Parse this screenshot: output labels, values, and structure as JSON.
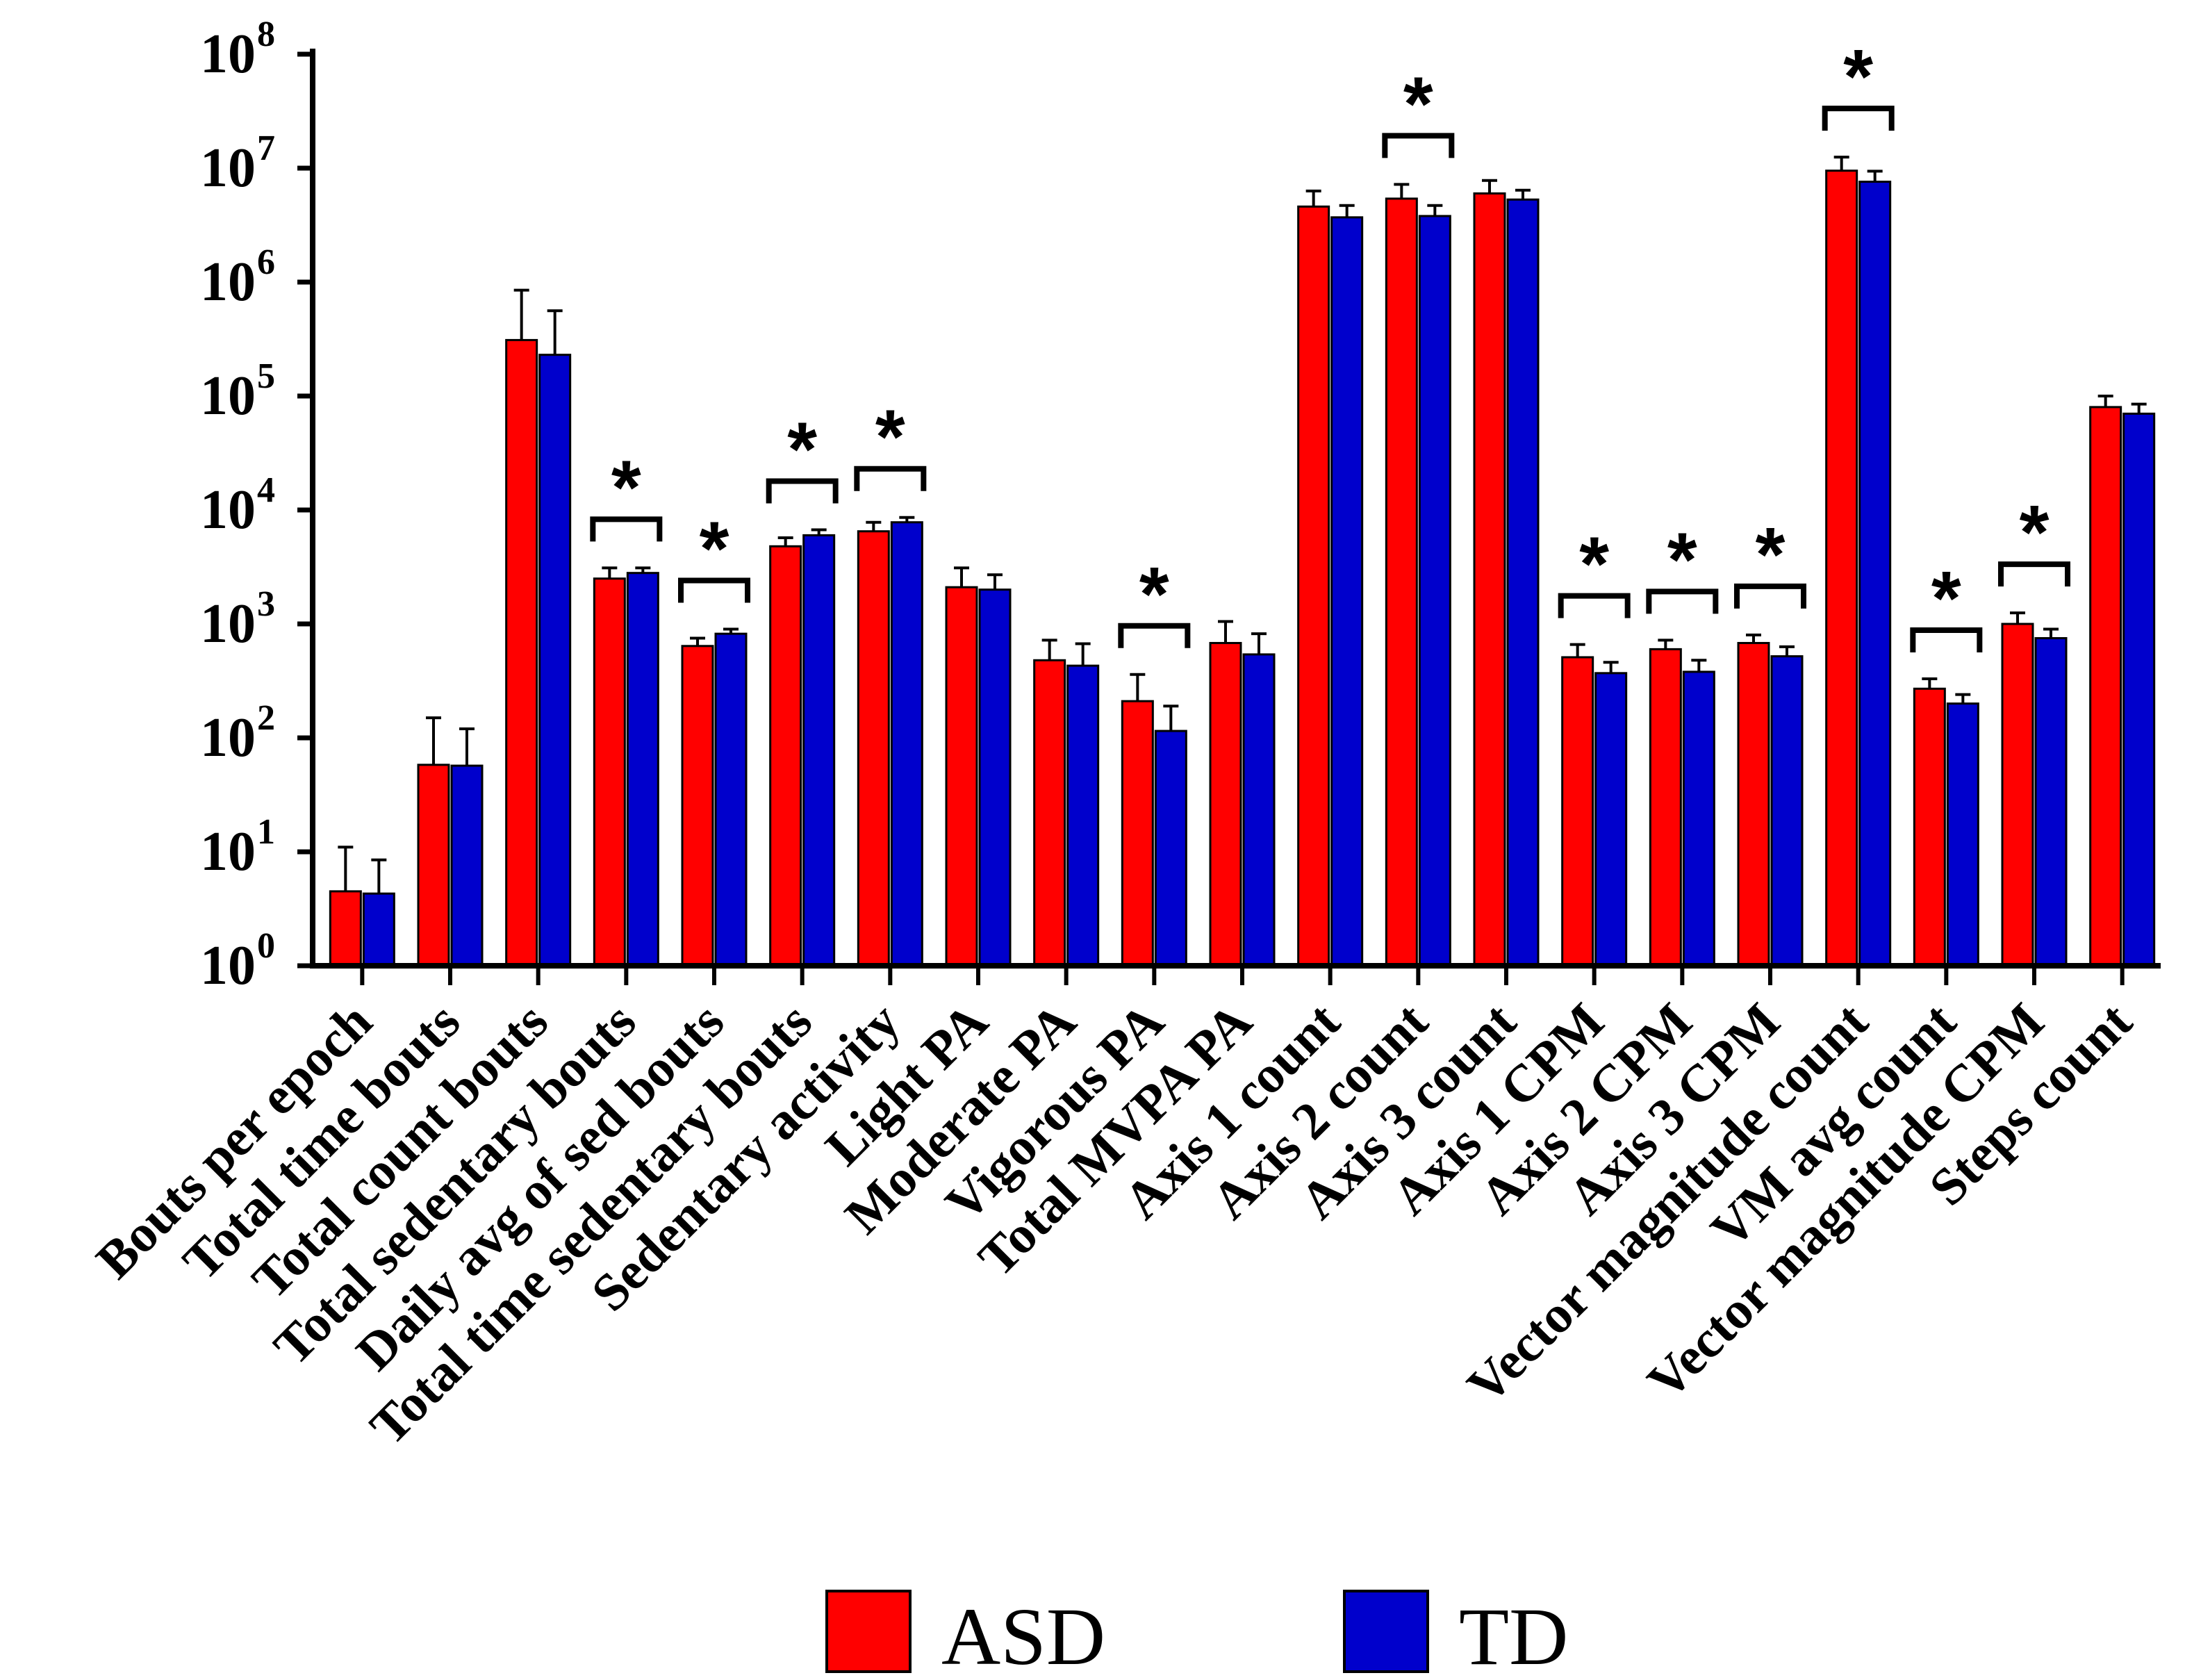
{
  "chart_data": {
    "type": "bar",
    "title": "",
    "xlabel": "",
    "ylabel": "",
    "yscale": "log",
    "ylim": [
      1,
      100000000
    ],
    "yticks": [
      {
        "base": "10",
        "exp": "0"
      },
      {
        "base": "10",
        "exp": "1"
      },
      {
        "base": "10",
        "exp": "2"
      },
      {
        "base": "10",
        "exp": "3"
      },
      {
        "base": "10",
        "exp": "4"
      },
      {
        "base": "10",
        "exp": "5"
      },
      {
        "base": "10",
        "exp": "6"
      },
      {
        "base": "10",
        "exp": "7"
      },
      {
        "base": "10",
        "exp": "8"
      }
    ],
    "categories": [
      "Bouts per epoch",
      "Total time bouts",
      "Total count bouts",
      "Total sedentary bouts",
      "Daily avg of sed bouts",
      "Total time sedentary bouts",
      "Sedentary activity",
      "Light PA",
      "Moderate PA",
      "Vigorous PA",
      "Total MVPA PA",
      "Axis 1 count",
      "Axis 2 count",
      "Axis 3 count",
      "Axis 1 CPM",
      "Axis 2 CPM",
      "Axis 3 CPM",
      "Vector magnitude count",
      "VM avg count",
      "Vector magnitude CPM",
      "Steps count"
    ],
    "series": [
      {
        "name": "ASD",
        "color": "#ff0000",
        "values": [
          4.5,
          58,
          310000,
          2500,
          640,
          4800,
          6500,
          2100,
          480,
          210,
          680,
          4600000,
          5400000,
          6000000,
          510,
          600,
          680,
          9500000,
          270,
          1000,
          80000
        ],
        "error_upper": [
          11,
          150,
          850000,
          3100,
          750,
          5700,
          7800,
          3100,
          720,
          360,
          1050,
          6300000,
          7200000,
          7800000,
          660,
          720,
          800,
          12500000,
          330,
          1250,
          100000
        ]
      },
      {
        "name": "TD",
        "color": "#0000cc",
        "values": [
          4.3,
          57,
          230000,
          2800,
          820,
          6000,
          7800,
          2000,
          430,
          115,
          540,
          3700000,
          3800000,
          5300000,
          370,
          380,
          520,
          7600000,
          200,
          750,
          70000
        ],
        "error_upper": [
          8.5,
          120,
          560000,
          3100,
          900,
          6700,
          8600,
          2700,
          670,
          190,
          820,
          4700000,
          4700000,
          6400000,
          460,
          480,
          630,
          9400000,
          240,
          900,
          85000
        ]
      }
    ],
    "significance": [
      false,
      false,
      false,
      true,
      true,
      true,
      true,
      false,
      false,
      true,
      false,
      false,
      true,
      false,
      true,
      true,
      true,
      true,
      true,
      true,
      false
    ],
    "significance_mark": "*",
    "legend_position": "bottom-center"
  }
}
